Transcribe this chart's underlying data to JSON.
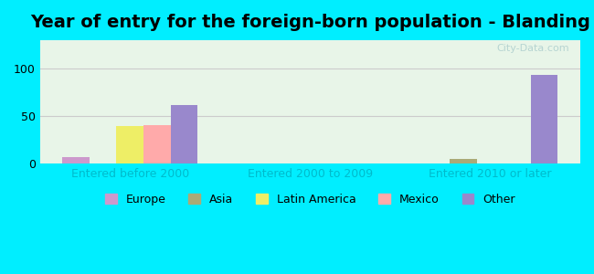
{
  "title": "Year of entry for the foreign-born population - Blanding",
  "categories": [
    "Entered before 2000",
    "Entered 2000 to 2009",
    "Entered 2010 or later"
  ],
  "series": {
    "Europe": [
      7,
      0,
      0
    ],
    "Asia": [
      0,
      0,
      5
    ],
    "Latin America": [
      40,
      0,
      0
    ],
    "Mexico": [
      41,
      0,
      0
    ],
    "Other": [
      62,
      0,
      93
    ]
  },
  "colors": {
    "Europe": "#cc99cc",
    "Asia": "#aaaa77",
    "Latin America": "#eeee66",
    "Mexico": "#ffaaaa",
    "Other": "#9988cc"
  },
  "ylim": [
    0,
    130
  ],
  "yticks": [
    0,
    50,
    100
  ],
  "background_outer": "#00eeff",
  "background_inner": "#e8f5e8",
  "xlabel_color": "#00bbcc",
  "title_fontsize": 14,
  "tick_fontsize": 9,
  "legend_fontsize": 9,
  "bar_width": 0.15,
  "watermark": "City-Data.com"
}
